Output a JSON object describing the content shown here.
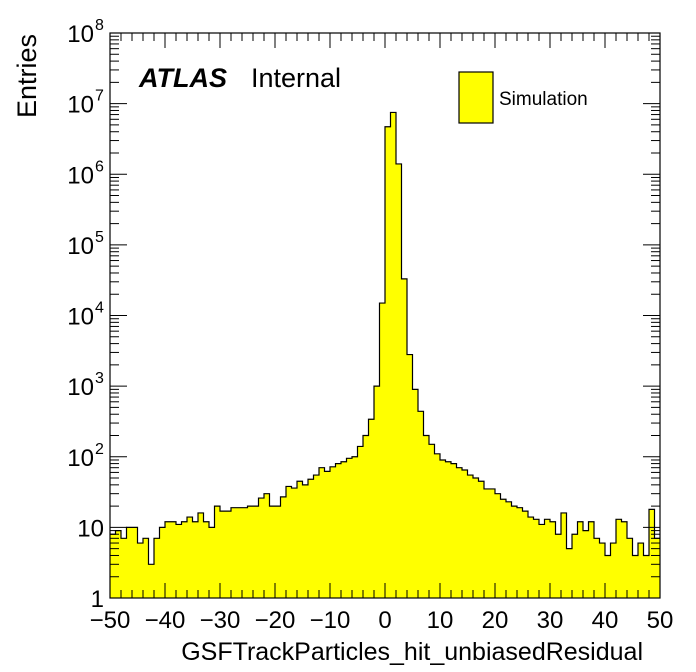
{
  "chart_data": {
    "type": "histogram",
    "xlabel": "GSFTrackParticles_hit_unbiasedResidual",
    "ylabel": "Entries",
    "xlim": [
      -50,
      50
    ],
    "ylim": [
      1,
      100000000
    ],
    "yscale": "log",
    "bin_width": 1,
    "x_ticks": [
      "−50",
      "−40",
      "−30",
      "−20",
      "−10",
      "0",
      "10",
      "20",
      "30",
      "40",
      "50"
    ],
    "y_ticks": [
      {
        "value": 1,
        "label": "1"
      },
      {
        "value": 10,
        "label": "10"
      },
      {
        "value": 100,
        "mantissa": "10",
        "exp": "2"
      },
      {
        "value": 1000,
        "mantissa": "10",
        "exp": "3"
      },
      {
        "value": 10000,
        "mantissa": "10",
        "exp": "4"
      },
      {
        "value": 100000,
        "mantissa": "10",
        "exp": "5"
      },
      {
        "value": 1000000,
        "mantissa": "10",
        "exp": "6"
      },
      {
        "value": 10000000,
        "mantissa": "10",
        "exp": "7"
      },
      {
        "value": 100000000,
        "mantissa": "10",
        "exp": "8"
      }
    ],
    "fill_color": "#ffff00",
    "line_color": "#000000",
    "legend": {
      "position": "top-right",
      "entries": [
        "Simulation"
      ]
    },
    "annotation": {
      "bold": "ATLAS",
      "normal": "Internal"
    },
    "bin_edges_start": -50,
    "values": [
      8,
      9,
      7,
      10,
      10,
      6,
      7,
      3,
      7,
      10,
      12,
      12,
      11,
      12,
      14,
      12,
      16,
      12,
      10,
      20,
      17,
      17,
      19,
      19,
      19,
      20,
      20,
      26,
      30,
      20,
      20,
      27,
      38,
      36,
      45,
      40,
      48,
      55,
      70,
      62,
      72,
      80,
      85,
      95,
      100,
      140,
      200,
      340,
      1000,
      15000,
      4700000,
      7500000,
      1400000,
      33000,
      2800,
      900,
      440,
      200,
      150,
      110,
      90,
      85,
      80,
      70,
      65,
      55,
      50,
      45,
      35,
      35,
      30,
      25,
      23,
      20,
      19,
      17,
      14,
      13,
      11,
      13,
      12,
      8,
      16,
      5,
      8,
      12,
      9,
      12,
      7,
      6,
      4,
      6,
      13,
      12,
      7,
      4,
      6,
      4,
      18,
      7
    ]
  }
}
